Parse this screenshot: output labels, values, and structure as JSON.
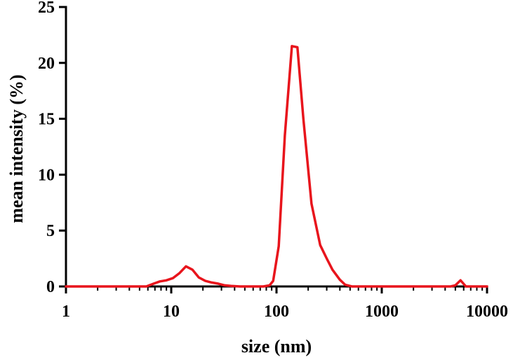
{
  "chart_data": {
    "type": "line",
    "xlabel": "size (nm)",
    "ylabel": "mean intensity (%)",
    "x_scale": "log",
    "xlim": [
      1,
      10000
    ],
    "ylim": [
      0,
      25
    ],
    "x_ticks": [
      1,
      10,
      100,
      1000,
      10000
    ],
    "x_tick_labels": [
      "1",
      "10",
      "100",
      "1000",
      "10000"
    ],
    "y_ticks": [
      0,
      5,
      10,
      15,
      20,
      25
    ],
    "y_tick_labels": [
      "0",
      "5",
      "10",
      "15",
      "20",
      "25"
    ],
    "grid": false,
    "series": [
      {
        "color": "#e8141c",
        "x": [
          1,
          5.8,
          6.8,
          7.8,
          9.0,
          10.4,
          12.0,
          13.8,
          15.9,
          18.3,
          21.1,
          24.3,
          28.0,
          32.2,
          37.1,
          45,
          60,
          75,
          86,
          93,
          105,
          120,
          140,
          158,
          180,
          215,
          260,
          300,
          340,
          400,
          450,
          520,
          1000,
          4500,
          5000,
          5600,
          6300,
          10000
        ],
        "y": [
          0,
          0,
          0.25,
          0.45,
          0.55,
          0.75,
          1.2,
          1.8,
          1.5,
          0.8,
          0.5,
          0.35,
          0.25,
          0.1,
          0.05,
          0,
          0,
          0,
          0.1,
          0.5,
          3.6,
          13.5,
          21.5,
          21.4,
          15.0,
          7.4,
          3.7,
          2.5,
          1.5,
          0.6,
          0.15,
          0,
          0,
          0,
          0.1,
          0.55,
          0,
          0
        ]
      }
    ]
  }
}
